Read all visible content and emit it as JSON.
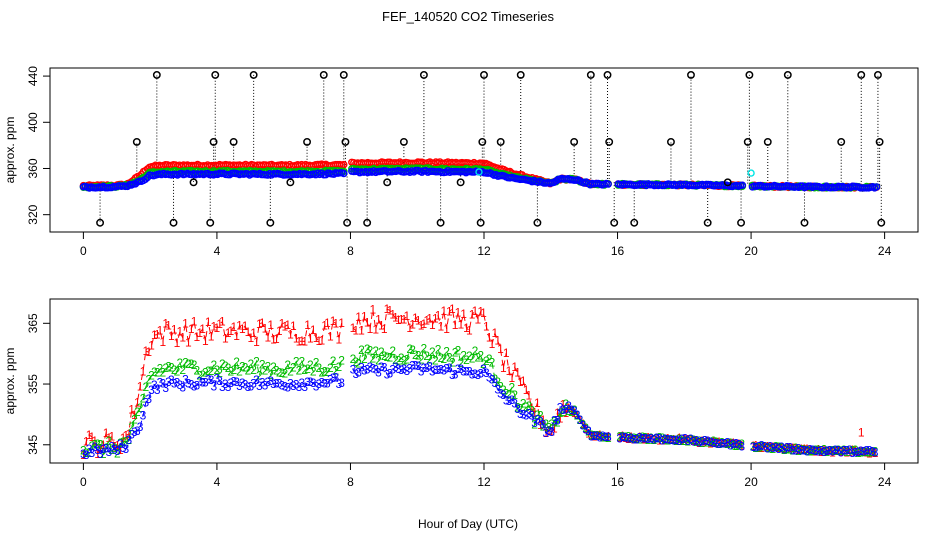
{
  "title": "FEF_140520  CO2 Timeseries",
  "xlabel": "Hour of Day (UTC)",
  "colors": {
    "series1": "#ff0000",
    "series2": "#00bb00",
    "series3": "#0000ff",
    "extra": "#00e5e5",
    "spikes": "#000000"
  },
  "chart_data": [
    {
      "type": "scatter",
      "title": "FEF_140520  CO2 Timeseries",
      "xlabel": "",
      "ylabel": "approx. ppm",
      "xlim": [
        -1,
        25
      ],
      "ylim": [
        305,
        447
      ],
      "xticks": [
        0,
        4,
        8,
        12,
        16,
        20,
        24
      ],
      "yticks": [
        320,
        360,
        400,
        440
      ],
      "spike_low": 313,
      "spike_mid": 383,
      "spike_high": 441,
      "spikes": [
        {
          "x": 0.5,
          "y": 313
        },
        {
          "x": 1.6,
          "y": 383
        },
        {
          "x": 2.2,
          "y": 441
        },
        {
          "x": 2.7,
          "y": 313
        },
        {
          "x": 3.3,
          "y": 348
        },
        {
          "x": 3.8,
          "y": 313
        },
        {
          "x": 3.9,
          "y": 383
        },
        {
          "x": 3.95,
          "y": 441
        },
        {
          "x": 4.5,
          "y": 383
        },
        {
          "x": 5.1,
          "y": 441
        },
        {
          "x": 5.6,
          "y": 313
        },
        {
          "x": 6.2,
          "y": 348
        },
        {
          "x": 6.7,
          "y": 383
        },
        {
          "x": 7.2,
          "y": 441
        },
        {
          "x": 7.8,
          "y": 441
        },
        {
          "x": 7.85,
          "y": 383
        },
        {
          "x": 7.9,
          "y": 313
        },
        {
          "x": 8.5,
          "y": 313
        },
        {
          "x": 9.1,
          "y": 348
        },
        {
          "x": 9.6,
          "y": 383
        },
        {
          "x": 10.2,
          "y": 441
        },
        {
          "x": 10.7,
          "y": 313
        },
        {
          "x": 11.3,
          "y": 348
        },
        {
          "x": 11.9,
          "y": 313
        },
        {
          "x": 11.95,
          "y": 383
        },
        {
          "x": 12.0,
          "y": 441
        },
        {
          "x": 12.5,
          "y": 383
        },
        {
          "x": 13.1,
          "y": 441
        },
        {
          "x": 13.6,
          "y": 313
        },
        {
          "x": 14.7,
          "y": 383
        },
        {
          "x": 15.2,
          "y": 441
        },
        {
          "x": 15.7,
          "y": 441
        },
        {
          "x": 15.75,
          "y": 383
        },
        {
          "x": 15.9,
          "y": 313
        },
        {
          "x": 16.5,
          "y": 313
        },
        {
          "x": 17.6,
          "y": 383
        },
        {
          "x": 18.2,
          "y": 441
        },
        {
          "x": 18.7,
          "y": 313
        },
        {
          "x": 19.3,
          "y": 348
        },
        {
          "x": 19.7,
          "y": 313
        },
        {
          "x": 19.9,
          "y": 383
        },
        {
          "x": 19.95,
          "y": 441
        },
        {
          "x": 20.5,
          "y": 383
        },
        {
          "x": 21.1,
          "y": 441
        },
        {
          "x": 21.6,
          "y": 313
        },
        {
          "x": 22.7,
          "y": 383
        },
        {
          "x": 23.3,
          "y": 441
        },
        {
          "x": 23.8,
          "y": 441
        },
        {
          "x": 23.85,
          "y": 383
        },
        {
          "x": 23.9,
          "y": 313
        }
      ],
      "series": [
        {
          "name": "1",
          "color": "#ff0000"
        },
        {
          "name": "2",
          "color": "#00bb00"
        },
        {
          "name": "3",
          "color": "#0000ff"
        }
      ]
    },
    {
      "type": "line",
      "title": "",
      "xlabel": "Hour of Day (UTC)",
      "ylabel": "approx. ppm",
      "xlim": [
        -1,
        25
      ],
      "ylim": [
        342,
        369
      ],
      "xticks": [
        0,
        4,
        8,
        12,
        16,
        20,
        24
      ],
      "yticks": [
        345,
        355,
        365
      ],
      "series": [
        {
          "name": "1",
          "label": "1",
          "color": "#ff0000"
        },
        {
          "name": "2",
          "label": "2",
          "color": "#00bb00"
        },
        {
          "name": "3",
          "label": "3",
          "color": "#0000ff"
        }
      ],
      "profile": [
        {
          "x": 0.0,
          "y": 343.8
        },
        {
          "x": 1.0,
          "y": 344.2
        },
        {
          "x": 1.3,
          "y": 345.0
        },
        {
          "x": 1.7,
          "y": 348.5
        },
        {
          "x": 2.0,
          "y": 354.0
        },
        {
          "x": 2.4,
          "y": 355.0
        },
        {
          "x": 4.0,
          "y": 355.2
        },
        {
          "x": 6.0,
          "y": 355.0
        },
        {
          "x": 7.8,
          "y": 355.5
        },
        {
          "x": 8.0,
          "y": 357.0
        },
        {
          "x": 10.0,
          "y": 357.5
        },
        {
          "x": 11.5,
          "y": 357.0
        },
        {
          "x": 12.0,
          "y": 357.0
        },
        {
          "x": 12.5,
          "y": 353.5
        },
        {
          "x": 13.0,
          "y": 351.0
        },
        {
          "x": 13.5,
          "y": 349.0
        },
        {
          "x": 14.0,
          "y": 347.0
        },
        {
          "x": 14.3,
          "y": 351.0
        },
        {
          "x": 14.7,
          "y": 350.5
        },
        {
          "x": 15.2,
          "y": 346.5
        },
        {
          "x": 16.0,
          "y": 346.2
        },
        {
          "x": 18.0,
          "y": 345.8
        },
        {
          "x": 20.0,
          "y": 344.8
        },
        {
          "x": 22.0,
          "y": 344.0
        },
        {
          "x": 23.8,
          "y": 343.8
        }
      ],
      "offsets": {
        "1": 8.5,
        "2": 2.5,
        "3": 0.0
      },
      "offset_decay_start": 12.0,
      "offset_decay_end": 14.0,
      "gaps": [
        [
          7.8,
          8.0
        ],
        [
          15.75,
          16.0
        ],
        [
          19.75,
          20.0
        ]
      ],
      "annotation": {
        "x": 23.3,
        "y": 347.0,
        "label": "1"
      }
    }
  ]
}
